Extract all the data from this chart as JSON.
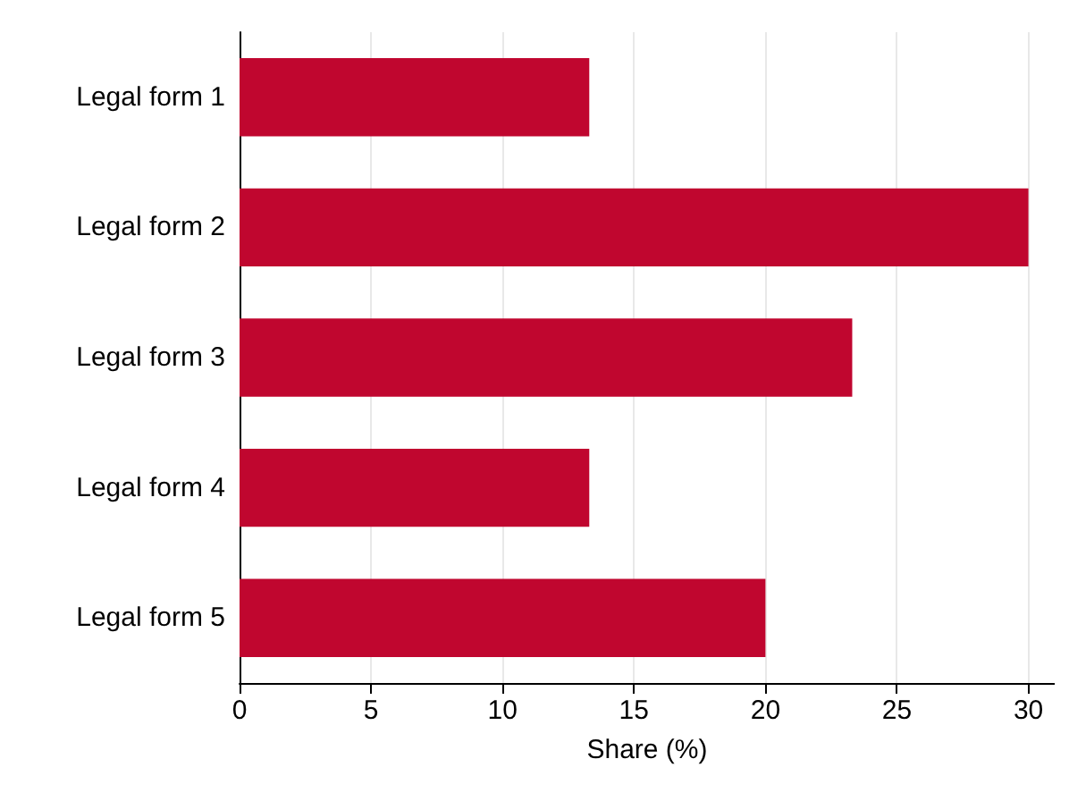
{
  "chart_data": {
    "type": "bar",
    "orientation": "horizontal",
    "xlabel": "Share (%)",
    "categories": [
      "Legal form 1",
      "Legal form 2",
      "Legal form 3",
      "Legal form 4",
      "Legal form 5"
    ],
    "values": [
      13.3,
      30,
      23.3,
      13.3,
      20
    ],
    "color": "#c0062f",
    "xlim": [
      0,
      31
    ],
    "xticks": [
      0,
      5,
      10,
      15,
      20,
      25,
      30
    ],
    "grid": "x"
  }
}
